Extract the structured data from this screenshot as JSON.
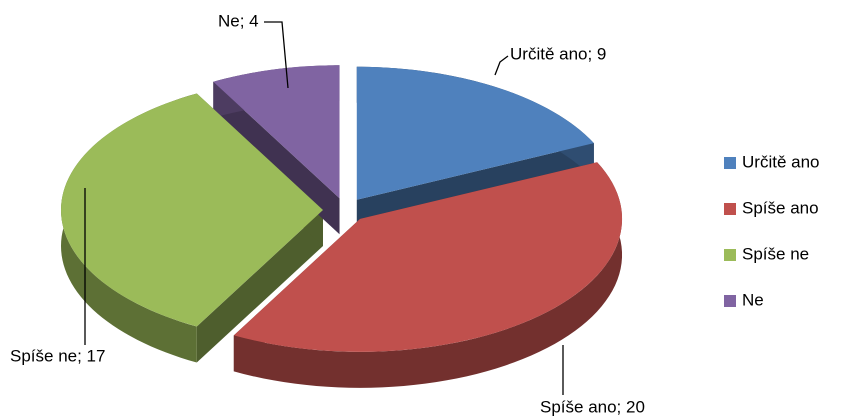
{
  "chart_data": {
    "type": "pie",
    "categories": [
      "Určitě ano",
      "Spíše ano",
      "Spíše ne",
      "Ne"
    ],
    "values": [
      9,
      20,
      17,
      4
    ],
    "value_labels": [
      "Určitě ano; 9",
      "Spíše ano; 20",
      "Spíše ne; 17",
      "Ne; 4"
    ],
    "colors": [
      "#4f81bd",
      "#c0504d",
      "#9bbb59",
      "#8064a2"
    ],
    "legend": "right"
  }
}
